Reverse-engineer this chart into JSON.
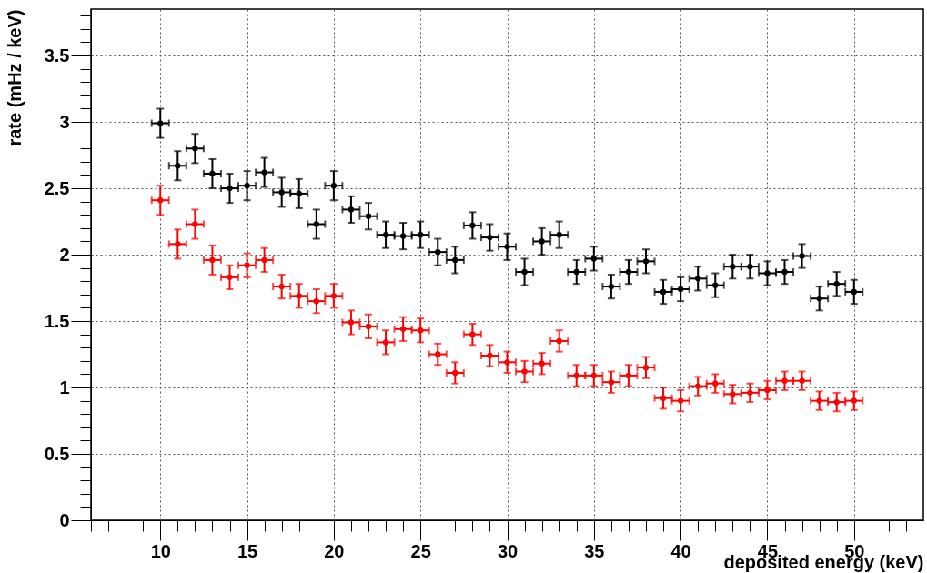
{
  "chart_data": {
    "type": "scatter",
    "xlabel": "deposited energy (keV)",
    "ylabel": "rate (mHz / keV)",
    "x": [
      10,
      11,
      12,
      13,
      14,
      15,
      16,
      17,
      18,
      19,
      20,
      21,
      22,
      23,
      24,
      25,
      26,
      27,
      28,
      29,
      30,
      31,
      32,
      33,
      34,
      35,
      36,
      37,
      38,
      39,
      40,
      41,
      42,
      43,
      44,
      45,
      46,
      47,
      48,
      49,
      50
    ],
    "series": [
      {
        "color": "#000000",
        "values": [
          2.99,
          2.67,
          2.8,
          2.61,
          2.5,
          2.52,
          2.62,
          2.47,
          2.46,
          2.23,
          2.52,
          2.34,
          2.29,
          2.15,
          2.14,
          2.15,
          2.02,
          1.96,
          2.22,
          2.13,
          2.06,
          1.87,
          2.1,
          2.15,
          1.87,
          1.97,
          1.76,
          1.87,
          1.95,
          1.72,
          1.74,
          1.82,
          1.77,
          1.91,
          1.91,
          1.86,
          1.87,
          1.99,
          1.67,
          1.78,
          1.72
        ],
        "errors": [
          0.11,
          0.11,
          0.11,
          0.11,
          0.11,
          0.11,
          0.11,
          0.11,
          0.11,
          0.11,
          0.11,
          0.1,
          0.1,
          0.1,
          0.1,
          0.1,
          0.1,
          0.1,
          0.1,
          0.1,
          0.1,
          0.1,
          0.1,
          0.1,
          0.09,
          0.09,
          0.09,
          0.09,
          0.09,
          0.09,
          0.09,
          0.09,
          0.09,
          0.09,
          0.09,
          0.09,
          0.09,
          0.09,
          0.09,
          0.09,
          0.09
        ],
        "xerrors": [
          0.5,
          0.5,
          0.5,
          0.5,
          0.5,
          0.5,
          0.5,
          0.5,
          0.5,
          0.5,
          0.5,
          0.5,
          0.5,
          0.5,
          0.5,
          0.5,
          0.5,
          0.5,
          0.5,
          0.5,
          0.5,
          0.5,
          0.5,
          0.5,
          0.5,
          0.5,
          0.5,
          0.5,
          0.5,
          0.5,
          0.5,
          0.5,
          0.5,
          0.5,
          0.5,
          0.5,
          0.5,
          0.5,
          0.5,
          0.5,
          0.5
        ]
      },
      {
        "color": "#ff0000",
        "values": [
          2.41,
          2.08,
          2.23,
          1.96,
          1.83,
          1.92,
          1.96,
          1.76,
          1.69,
          1.65,
          1.69,
          1.49,
          1.46,
          1.34,
          1.44,
          1.43,
          1.25,
          1.11,
          1.4,
          1.24,
          1.19,
          1.12,
          1.18,
          1.35,
          1.09,
          1.09,
          1.04,
          1.09,
          1.15,
          0.92,
          0.9,
          1.01,
          1.03,
          0.95,
          0.96,
          0.98,
          1.05,
          1.05,
          0.9,
          0.89,
          0.9
        ],
        "errors": [
          0.11,
          0.11,
          0.11,
          0.11,
          0.09,
          0.09,
          0.09,
          0.09,
          0.09,
          0.09,
          0.09,
          0.09,
          0.09,
          0.09,
          0.09,
          0.09,
          0.08,
          0.08,
          0.08,
          0.08,
          0.08,
          0.08,
          0.08,
          0.08,
          0.08,
          0.08,
          0.08,
          0.08,
          0.08,
          0.08,
          0.08,
          0.07,
          0.07,
          0.07,
          0.07,
          0.07,
          0.07,
          0.07,
          0.07,
          0.07,
          0.07
        ],
        "xerrors": [
          0.5,
          0.5,
          0.5,
          0.5,
          0.5,
          0.5,
          0.5,
          0.5,
          0.5,
          0.5,
          0.5,
          0.5,
          0.5,
          0.5,
          0.5,
          0.5,
          0.5,
          0.5,
          0.5,
          0.5,
          0.5,
          0.5,
          0.5,
          0.5,
          0.5,
          0.5,
          0.5,
          0.5,
          0.5,
          0.5,
          0.5,
          0.5,
          0.5,
          0.5,
          0.5,
          0.5,
          0.5,
          0.5,
          0.5,
          0.5,
          0.5
        ]
      }
    ],
    "xlim": [
      6,
      54
    ],
    "xticks": [
      {
        "value": 6,
        "label": null
      },
      {
        "value": 7,
        "label": null
      },
      {
        "value": 8,
        "label": null
      },
      {
        "value": 9,
        "label": null
      },
      10,
      {
        "value": 11,
        "label": null
      },
      {
        "value": 12,
        "label": null
      },
      {
        "value": 13,
        "label": null
      },
      {
        "value": 14,
        "label": null
      },
      15,
      {
        "value": 16,
        "label": null
      },
      {
        "value": 17,
        "label": null
      },
      {
        "value": 18,
        "label": null
      },
      {
        "value": 19,
        "label": null
      },
      20,
      {
        "value": 21,
        "label": null
      },
      {
        "value": 22,
        "label": null
      },
      {
        "value": 23,
        "label": null
      },
      {
        "value": 24,
        "label": null
      },
      25,
      {
        "value": 26,
        "label": null
      },
      {
        "value": 27,
        "label": null
      },
      {
        "value": 28,
        "label": null
      },
      {
        "value": 29,
        "label": null
      },
      30,
      {
        "value": 31,
        "label": null
      },
      {
        "value": 32,
        "label": null
      },
      {
        "value": 33,
        "label": null
      },
      {
        "value": 34,
        "label": null
      },
      35,
      {
        "value": 36,
        "label": null
      },
      {
        "value": 37,
        "label": null
      },
      {
        "value": 38,
        "label": null
      },
      {
        "value": 39,
        "label": null
      },
      40,
      {
        "value": 41,
        "label": null
      },
      {
        "value": 42,
        "label": null
      },
      {
        "value": 43,
        "label": null
      },
      {
        "value": 44,
        "label": null
      },
      45,
      {
        "value": 46,
        "label": null
      },
      {
        "value": 47,
        "label": null
      },
      {
        "value": 48,
        "label": null
      },
      {
        "value": 49,
        "label": null
      },
      50,
      {
        "value": 51,
        "label": null
      },
      {
        "value": 52,
        "label": null
      },
      {
        "value": 53,
        "label": null
      }
    ],
    "ylim": [
      0,
      3.85
    ],
    "yticks": [
      0,
      {
        "value": 0.1,
        "label": null
      },
      {
        "value": 0.2,
        "label": null
      },
      {
        "value": 0.3,
        "label": null
      },
      {
        "value": 0.4,
        "label": null
      },
      0.5,
      {
        "value": 0.6,
        "label": null
      },
      {
        "value": 0.7,
        "label": null
      },
      {
        "value": 0.8,
        "label": null
      },
      {
        "value": 0.9,
        "label": null
      },
      1,
      {
        "value": 1.1,
        "label": null
      },
      {
        "value": 1.2,
        "label": null
      },
      {
        "value": 1.3,
        "label": null
      },
      {
        "value": 1.4,
        "label": null
      },
      1.5,
      {
        "value": 1.6,
        "label": null
      },
      {
        "value": 1.7,
        "label": null
      },
      {
        "value": 1.8,
        "label": null
      },
      {
        "value": 1.9,
        "label": null
      },
      2,
      {
        "value": 2.1,
        "label": null
      },
      {
        "value": 2.2,
        "label": null
      },
      {
        "value": 2.3,
        "label": null
      },
      {
        "value": 2.4,
        "label": null
      },
      2.5,
      {
        "value": 2.6,
        "label": null
      },
      {
        "value": 2.7,
        "label": null
      },
      {
        "value": 2.8,
        "label": null
      },
      {
        "value": 2.9,
        "label": null
      },
      3,
      {
        "value": 3.1,
        "label": null
      },
      {
        "value": 3.2,
        "label": null
      },
      {
        "value": 3.3,
        "label": null
      },
      {
        "value": 3.4,
        "label": null
      },
      3.5,
      {
        "value": 3.6,
        "label": null
      },
      {
        "value": 3.7,
        "label": null
      },
      {
        "value": 3.8,
        "label": null
      }
    ],
    "grid": true,
    "marker": "circle"
  }
}
